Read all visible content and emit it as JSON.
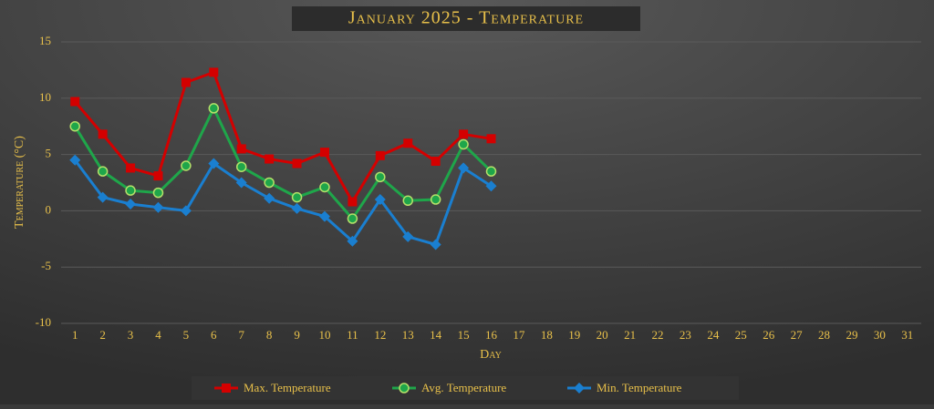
{
  "chart_data": {
    "type": "line",
    "title": "January 2025 - Temperature",
    "x_label": "Day",
    "y_label": "Temperature (°C)",
    "categories": [
      "1",
      "2",
      "3",
      "4",
      "5",
      "6",
      "7",
      "8",
      "9",
      "10",
      "11",
      "12",
      "13",
      "14",
      "15",
      "16",
      "17",
      "18",
      "19",
      "20",
      "21",
      "22",
      "23",
      "24",
      "25",
      "26",
      "27",
      "28",
      "29",
      "30",
      "31"
    ],
    "series": [
      {
        "name": "Max. Temperature",
        "color": "#d40000",
        "marker": "square",
        "values": [
          9.7,
          6.8,
          3.8,
          3.1,
          11.4,
          12.3,
          5.5,
          4.6,
          4.2,
          5.2,
          0.8,
          4.9,
          6.0,
          4.4,
          6.8,
          6.4,
          null,
          null,
          null,
          null,
          null,
          null,
          null,
          null,
          null,
          null,
          null,
          null,
          null,
          null,
          null
        ]
      },
      {
        "name": "Avg. Temperature",
        "color": "#1fa64a",
        "marker": "circle",
        "values": [
          7.5,
          3.5,
          1.8,
          1.6,
          4.0,
          9.1,
          3.9,
          2.5,
          1.2,
          2.1,
          -0.7,
          3.0,
          0.9,
          1.0,
          5.9,
          3.5,
          null,
          null,
          null,
          null,
          null,
          null,
          null,
          null,
          null,
          null,
          null,
          null,
          null,
          null,
          null
        ]
      },
      {
        "name": "Min. Temperature",
        "color": "#1a7fd0",
        "marker": "diamond",
        "values": [
          4.5,
          1.2,
          0.6,
          0.3,
          0.0,
          4.2,
          2.5,
          1.1,
          0.2,
          -0.5,
          -2.7,
          1.0,
          -2.3,
          -3.0,
          3.8,
          2.2,
          null,
          null,
          null,
          null,
          null,
          null,
          null,
          null,
          null,
          null,
          null,
          null,
          null,
          null,
          null
        ]
      }
    ],
    "ylim": [
      -10,
      15
    ],
    "yticks": [
      -10,
      -5,
      0,
      5,
      10,
      15
    ],
    "grid": true,
    "legend": "bottom"
  }
}
